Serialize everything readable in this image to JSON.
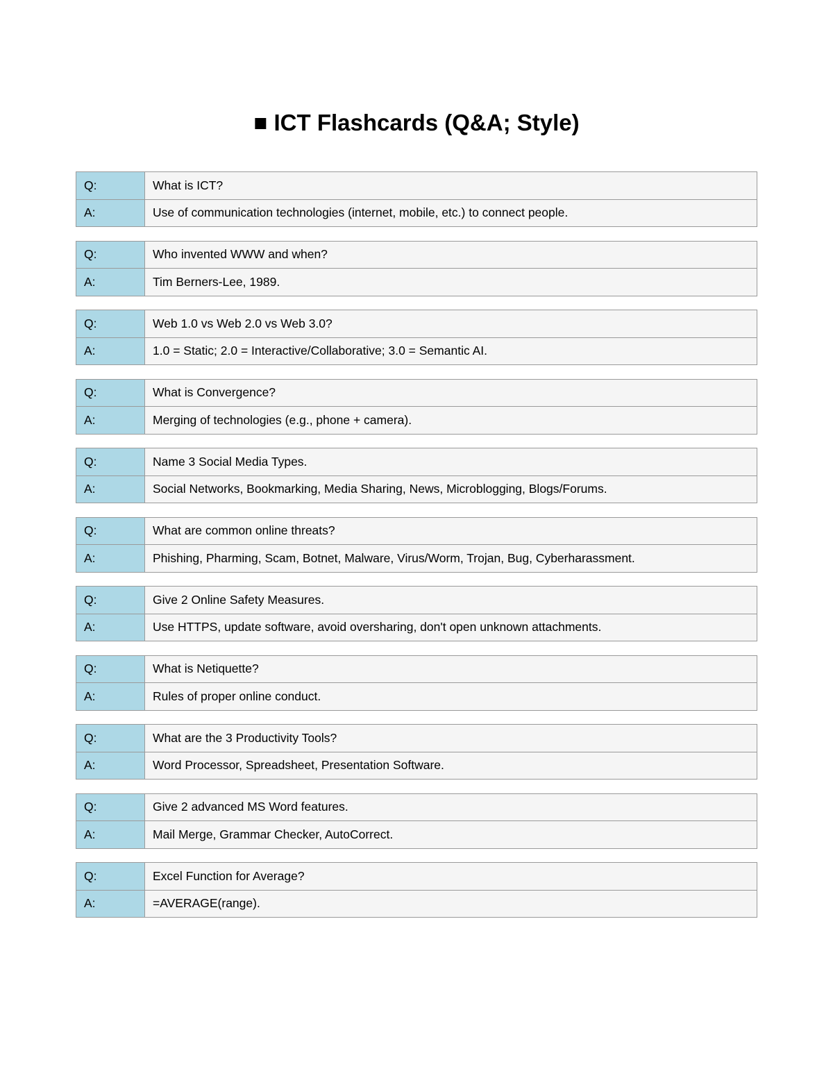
{
  "title": "■ ICT Flashcards (Q&A; Style)",
  "labels": {
    "q": "Q:",
    "a": "A:"
  },
  "colors": {
    "label_bg": "#add8e6",
    "cell_bg": "#f5f5f5",
    "border": "#9a9a9a"
  },
  "cards": [
    {
      "q": "What is ICT?",
      "a": "Use of communication technologies (internet, mobile, etc.) to connect people."
    },
    {
      "q": "Who invented WWW and when?",
      "a": "Tim Berners-Lee, 1989."
    },
    {
      "q": "Web 1.0 vs Web 2.0 vs Web 3.0?",
      "a": "1.0 = Static; 2.0 = Interactive/Collaborative; 3.0 = Semantic AI."
    },
    {
      "q": "What is Convergence?",
      "a": "Merging of technologies (e.g., phone + camera)."
    },
    {
      "q": "Name 3 Social Media Types.",
      "a": "Social Networks, Bookmarking, Media Sharing, News, Microblogging, Blogs/Forums."
    },
    {
      "q": "What are common online threats?",
      "a": "Phishing, Pharming, Scam, Botnet, Malware, Virus/Worm, Trojan, Bug, Cyberharassment."
    },
    {
      "q": "Give 2 Online Safety Measures.",
      "a": "Use HTTPS, update software, avoid oversharing, don't open unknown attachments."
    },
    {
      "q": "What is Netiquette?",
      "a": "Rules of proper online conduct."
    },
    {
      "q": "What are the 3 Productivity Tools?",
      "a": "Word Processor, Spreadsheet, Presentation Software."
    },
    {
      "q": "Give 2 advanced MS Word features.",
      "a": "Mail Merge, Grammar Checker, AutoCorrect."
    },
    {
      "q": "Excel Function for Average?",
      "a": "=AVERAGE(range)."
    }
  ]
}
